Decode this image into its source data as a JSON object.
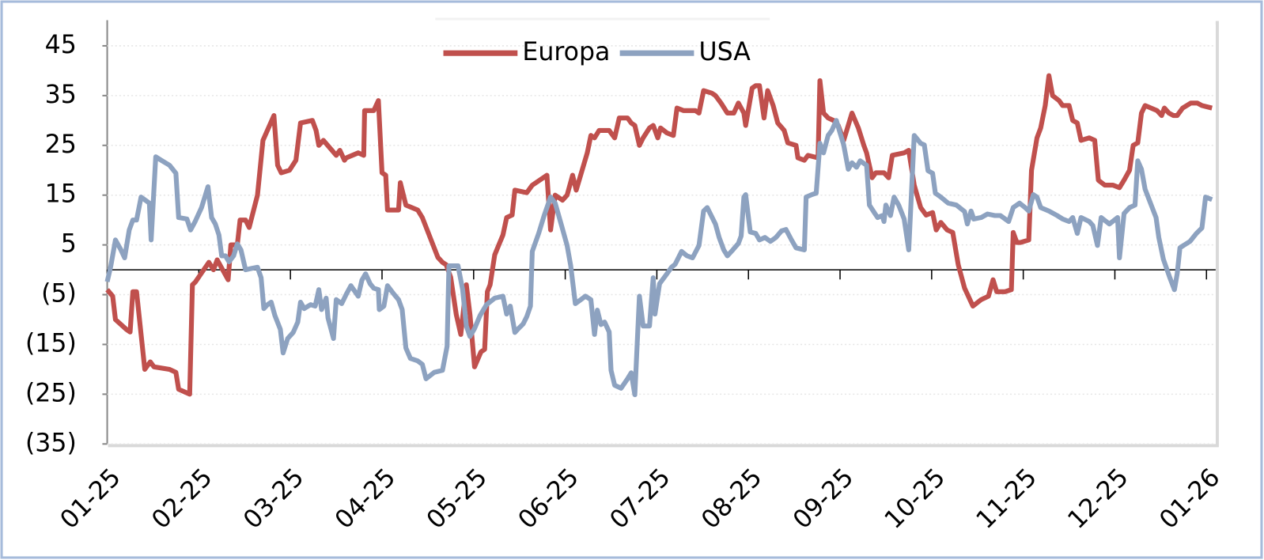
{
  "chart_data": {
    "type": "line",
    "xlim": [
      0,
      12.1
    ],
    "xticks": [
      {
        "value": 0,
        "label": "01-25"
      },
      {
        "value": 1,
        "label": "02-25"
      },
      {
        "value": 2,
        "label": "03-25"
      },
      {
        "value": 3,
        "label": "04-25"
      },
      {
        "value": 4,
        "label": "05-25"
      },
      {
        "value": 5,
        "label": "06-25"
      },
      {
        "value": 6,
        "label": "07-25"
      },
      {
        "value": 7,
        "label": "08-25"
      },
      {
        "value": 8,
        "label": "09-25"
      },
      {
        "value": 9,
        "label": "10-25"
      },
      {
        "value": 10,
        "label": "11-25"
      },
      {
        "value": 11,
        "label": "12-25"
      },
      {
        "value": 12,
        "label": "01-26"
      }
    ],
    "ylim": [
      -35,
      50
    ],
    "yticks": [
      {
        "value": -35,
        "label": "(35)"
      },
      {
        "value": -25,
        "label": "(25)"
      },
      {
        "value": -15,
        "label": "(15)"
      },
      {
        "value": -5,
        "label": "(5)"
      },
      5,
      15,
      25,
      35,
      45
    ],
    "grid": true,
    "legend": "top",
    "series": [
      {
        "name": "Europa",
        "color": "#c0504d",
        "x": [
          0,
          0.06,
          0.09,
          0.21,
          0.25,
          0.28,
          0.32,
          0.41,
          0.47,
          0.51,
          0.68,
          0.75,
          0.78,
          0.9,
          0.93,
          0.96,
          1.11,
          1.16,
          1.2,
          1.32,
          1.35,
          1.42,
          1.45,
          1.51,
          1.55,
          1.64,
          1.7,
          1.82,
          1.86,
          1.9,
          1.99,
          2.06,
          2.11,
          2.24,
          2.28,
          2.31,
          2.36,
          2.5,
          2.54,
          2.59,
          2.61,
          2.74,
          2.8,
          2.81,
          2.91,
          2.96,
          3.0,
          3.04,
          3.06,
          3.18,
          3.2,
          3.26,
          3.39,
          3.44,
          3.61,
          3.66,
          3.7,
          3.75,
          3.81,
          3.86,
          3.92,
          3.96,
          4.01,
          4.08,
          4.12,
          4.15,
          4.18,
          4.23,
          4.32,
          4.36,
          4.42,
          4.45,
          4.58,
          4.64,
          4.8,
          4.84,
          4.89,
          4.97,
          5.02,
          5.08,
          5.12,
          5.24,
          5.28,
          5.32,
          5.37,
          5.48,
          5.54,
          5.59,
          5.68,
          5.72,
          5.76,
          5.81,
          5.85,
          5.92,
          5.96,
          6.01,
          6.04,
          6.11,
          6.18,
          6.22,
          6.29,
          6.33,
          6.42,
          6.46,
          6.51,
          6.6,
          6.64,
          6.7,
          6.77,
          6.84,
          6.89,
          6.95,
          6.97,
          7.04,
          7.08,
          7.12,
          7.17,
          7.21,
          7.27,
          7.32,
          7.39,
          7.43,
          7.52,
          7.54,
          7.61,
          7.65,
          7.76,
          7.78,
          7.82,
          7.87,
          7.93,
          7.98,
          8.04,
          8.13,
          8.2,
          8.26,
          8.29,
          8.35,
          8.39,
          8.48,
          8.53,
          8.57,
          8.7,
          8.75,
          8.81,
          8.88,
          8.94,
          9.01,
          9.05,
          9.1,
          9.17,
          9.23,
          9.29,
          9.36,
          9.45,
          9.54,
          9.62,
          9.67,
          9.71,
          9.8,
          9.87,
          9.89,
          9.93,
          9.97,
          10.06,
          10.09,
          10.15,
          10.19,
          10.24,
          10.28,
          10.32,
          10.39,
          10.43,
          10.5,
          10.54,
          10.59,
          10.63,
          10.72,
          10.78,
          10.82,
          10.89,
          10.98,
          11.05,
          11.1,
          11.16,
          11.2,
          11.25,
          11.29,
          11.33,
          11.46,
          11.51,
          11.54,
          11.59,
          11.64,
          11.68,
          11.74,
          11.83,
          11.9,
          11.95,
          12.06
        ],
        "values": [
          -4,
          -5.3,
          -10,
          -12,
          -12.5,
          -4.4,
          -4.4,
          -20,
          -18.5,
          -19.5,
          -20,
          -20.6,
          -24,
          -25,
          -3,
          -2.5,
          1.5,
          0,
          2,
          -2,
          5,
          5,
          10,
          10,
          8.5,
          15,
          26,
          31,
          21,
          19.5,
          20,
          22,
          29.5,
          30,
          28,
          25,
          26,
          23,
          24,
          22,
          22.5,
          23.5,
          23,
          32,
          32,
          34,
          19.5,
          19,
          12,
          12,
          17.5,
          13,
          12,
          10.5,
          2.5,
          1.5,
          1,
          -1.5,
          -9,
          -13,
          -3,
          -9,
          -19.5,
          -16.5,
          -16,
          -4.4,
          -3,
          3,
          7,
          10.5,
          11,
          16,
          15.5,
          17,
          19,
          8,
          15,
          14,
          15,
          19,
          16,
          23.5,
          27,
          26.5,
          28,
          28,
          26.5,
          30.5,
          30.5,
          29.5,
          29,
          25,
          26.5,
          28.5,
          29,
          26.5,
          28.5,
          27.5,
          27,
          32.5,
          32,
          32,
          32,
          31.5,
          36,
          35.5,
          35,
          33.5,
          31.5,
          31.5,
          33.5,
          31.5,
          29,
          36.5,
          37,
          37,
          30.5,
          36,
          33,
          29.5,
          28,
          25.5,
          25,
          22.5,
          22,
          23,
          22.5,
          38,
          31.5,
          30.5,
          30,
          29,
          26,
          31.5,
          28.5,
          25,
          23.5,
          18.5,
          19.5,
          19.5,
          18.5,
          23,
          23.5,
          24,
          17,
          12.5,
          11,
          11.5,
          8,
          9.5,
          8,
          7.5,
          1,
          -3.7,
          -7.3,
          -6,
          -5.3,
          -2,
          -4.4,
          -4.4,
          -4,
          7.5,
          5.5,
          5.5,
          6,
          20,
          26.5,
          28.5,
          33,
          39,
          35,
          34,
          33,
          33,
          30,
          29.5,
          26,
          26.5,
          26,
          18,
          17,
          17,
          16.5,
          18,
          20,
          25,
          25.5,
          31.5,
          33,
          32,
          31,
          32.5,
          31.5,
          31,
          31,
          32.5,
          33.5,
          33.5,
          33,
          32.5
        ]
      },
      {
        "name": "USA",
        "color": "#8da2c0",
        "x": [
          0,
          0.04,
          0.09,
          0.15,
          0.19,
          0.24,
          0.28,
          0.32,
          0.37,
          0.43,
          0.46,
          0.48,
          0.53,
          0.59,
          0.68,
          0.75,
          0.78,
          0.87,
          0.91,
          0.96,
          1.03,
          1.1,
          1.14,
          1.18,
          1.22,
          1.25,
          1.29,
          1.33,
          1.38,
          1.42,
          1.46,
          1.51,
          1.58,
          1.64,
          1.68,
          1.71,
          1.75,
          1.79,
          1.83,
          1.89,
          1.92,
          1.97,
          2.03,
          2.08,
          2.11,
          2.15,
          2.22,
          2.27,
          2.31,
          2.34,
          2.39,
          2.41,
          2.47,
          2.5,
          2.56,
          2.61,
          2.66,
          2.74,
          2.78,
          2.82,
          2.87,
          2.91,
          2.96,
          2.97,
          3.02,
          3.06,
          3.13,
          3.18,
          3.22,
          3.26,
          3.31,
          3.39,
          3.44,
          3.48,
          3.57,
          3.66,
          3.71,
          3.73,
          3.83,
          3.88,
          3.92,
          3.96,
          4.01,
          4.07,
          4.14,
          4.23,
          4.32,
          4.36,
          4.4,
          4.45,
          4.49,
          4.54,
          4.58,
          4.62,
          4.64,
          4.71,
          4.77,
          4.84,
          4.89,
          4.96,
          5.02,
          5.06,
          5.11,
          5.17,
          5.22,
          5.28,
          5.32,
          5.35,
          5.39,
          5.43,
          5.48,
          5.5,
          5.54,
          5.61,
          5.68,
          5.72,
          5.76,
          5.81,
          5.85,
          5.92,
          5.96,
          5.98,
          6.03,
          6.11,
          6.16,
          6.2,
          6.27,
          6.33,
          6.39,
          6.46,
          6.51,
          6.55,
          6.64,
          6.68,
          6.73,
          6.77,
          6.83,
          6.89,
          6.92,
          6.95,
          6.97,
          7.02,
          7.08,
          7.12,
          7.18,
          7.24,
          7.3,
          7.36,
          7.41,
          7.47,
          7.52,
          7.61,
          7.63,
          7.69,
          7.74,
          7.78,
          7.82,
          7.87,
          7.91,
          7.96,
          8.0,
          8.04,
          8.09,
          8.13,
          8.18,
          8.22,
          8.29,
          8.32,
          8.38,
          8.41,
          8.46,
          8.48,
          8.5,
          8.55,
          8.59,
          8.64,
          8.7,
          8.75,
          8.81,
          8.88,
          8.92,
          8.96,
          9.01,
          9.04,
          9.1,
          9.18,
          9.27,
          9.36,
          9.39,
          9.43,
          9.46,
          9.54,
          9.61,
          9.69,
          9.75,
          9.84,
          9.89,
          9.96,
          10.02,
          10.06,
          10.11,
          10.15,
          10.19,
          10.28,
          10.37,
          10.43,
          10.5,
          10.54,
          10.59,
          10.63,
          10.72,
          10.76,
          10.81,
          10.85,
          10.94,
          11.03,
          11.05,
          11.1,
          11.16,
          11.22,
          11.25,
          11.29,
          11.33,
          11.38,
          11.45,
          11.48,
          11.53,
          11.6,
          11.65,
          11.68,
          11.71,
          11.75,
          11.82,
          11.89,
          11.95,
          11.99,
          12.06
        ],
        "values": [
          -2.4,
          0.8,
          6,
          4,
          2.4,
          8,
          10,
          10,
          14.6,
          13.8,
          13.4,
          6,
          22.7,
          22,
          21,
          19.4,
          10.5,
          10.2,
          8,
          9.7,
          12.5,
          16.7,
          10.5,
          9.2,
          7,
          2.8,
          2.8,
          1.6,
          2.8,
          5.2,
          4,
          0,
          0.3,
          0.5,
          -1.6,
          -7.8,
          -7,
          -6.5,
          -9.2,
          -12,
          -16.7,
          -13.8,
          -12.6,
          -10.5,
          -6.5,
          -7.8,
          -7,
          -7.3,
          -4,
          -8,
          -5.7,
          -9.7,
          -13.8,
          -6,
          -6.8,
          -4.9,
          -3.2,
          -5.3,
          -2.1,
          -0.8,
          -2.8,
          -3.7,
          -4,
          -8,
          -7.3,
          -3.2,
          -4.9,
          -6,
          -8,
          -15.7,
          -17.8,
          -18.3,
          -19,
          -21.9,
          -20.6,
          -20.2,
          -15.4,
          0.8,
          0.8,
          -4,
          -11.3,
          -13.4,
          -11.8,
          -9.2,
          -7,
          -5.7,
          -5.3,
          -8.9,
          -7.3,
          -12.6,
          -11.8,
          -10.9,
          -9.4,
          -7.3,
          3.7,
          7.3,
          10.9,
          14.6,
          13.4,
          8.9,
          4.9,
          0.8,
          -6.8,
          -6,
          -5.3,
          -6,
          -13,
          -8.1,
          -11,
          -10.5,
          -12.5,
          -20.2,
          -23.2,
          -23.8,
          -21.9,
          -20.7,
          -25.1,
          -5.3,
          -11.3,
          -11.3,
          -1.6,
          -8.9,
          -2.8,
          -0.8,
          0.5,
          1.1,
          3.7,
          2.8,
          2.4,
          4.9,
          11.8,
          12.5,
          9.2,
          6.5,
          4,
          2.8,
          4,
          5.3,
          6.8,
          14.6,
          15.1,
          7.6,
          7.3,
          6,
          6.5,
          5.7,
          6.5,
          7.8,
          8.1,
          6,
          4.4,
          4,
          14.6,
          15.1,
          15.4,
          25.4,
          23.5,
          27,
          28,
          30,
          27.5,
          25.1,
          20.2,
          21.5,
          20.6,
          21.9,
          21,
          13,
          11.3,
          10.5,
          10.9,
          9.7,
          13,
          10.9,
          14.6,
          13,
          10.2,
          4,
          27,
          25.4,
          25.1,
          19.9,
          19.4,
          15.4,
          14.6,
          13.4,
          13,
          11.7,
          9.2,
          11.8,
          10.2,
          10.5,
          11.2,
          10.9,
          10.9,
          9.7,
          12.5,
          13.4,
          12.5,
          11.8,
          15.1,
          14.6,
          12.5,
          11.8,
          10.9,
          10.2,
          9.7,
          10.5,
          7.3,
          10.5,
          9.7,
          8.9,
          4.9,
          10.5,
          9.2,
          10.5,
          2.4,
          11.3,
          12.5,
          13,
          21.9,
          20.2,
          16.2,
          13.8,
          10.5,
          6.5,
          2.1,
          -1.6,
          -4,
          -0.8,
          4.4,
          4.9,
          5.7,
          7.3,
          8.4,
          14.6,
          14.1
        ]
      }
    ]
  }
}
